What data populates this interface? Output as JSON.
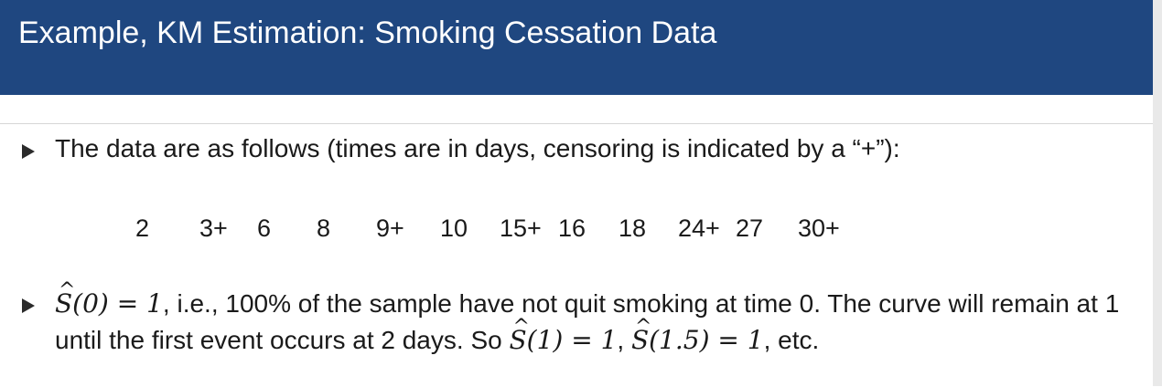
{
  "slide": {
    "title": "Example, KM Estimation: Smoking Cessation Data",
    "bullet1": "The data are as follows (times are in days, censoring is indicated by a “+”):",
    "data_values": [
      "2",
      "3+",
      "6",
      "8",
      "9+",
      "10",
      "15+",
      "16",
      "18",
      "24+",
      "27",
      "30+"
    ],
    "bullet2": {
      "s0": "S(0) = 1",
      "text1": ", i.e., 100% of the sample have not quit smoking at time 0. The curve will remain at 1 until the first event occurs at 2 days. So ",
      "s1": "S(1) = 1",
      "comma": ", ",
      "s15": "S(1.5) = 1",
      "text2": ", etc."
    }
  },
  "colors": {
    "title_bar": "#1f4780",
    "title_text": "#ffffff",
    "bullet_arrow": "#2b2b2b"
  }
}
